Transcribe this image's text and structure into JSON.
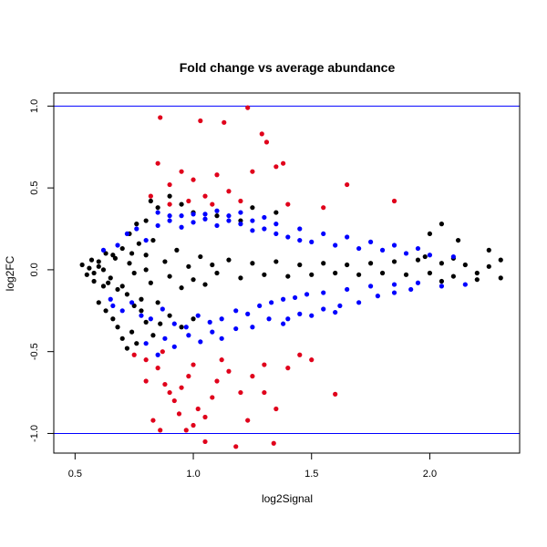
{
  "chart_data": {
    "type": "scatter",
    "title": "Fold change vs average abundance",
    "xlabel": "log2Signal",
    "ylabel": "log2FC",
    "xlim": [
      0.41,
      2.38
    ],
    "ylim": [
      -1.12,
      1.08
    ],
    "x_ticks": [
      0.5,
      1.0,
      1.5,
      2.0
    ],
    "x_tick_labels": [
      "0.5",
      "1.0",
      "1.5",
      "2.0"
    ],
    "y_ticks": [
      -1.0,
      -0.5,
      0.0,
      0.5,
      1.0
    ],
    "y_tick_labels": [
      "-1.0",
      "-0.5",
      "0.0",
      "0.5",
      "1.0"
    ],
    "reference_lines": [
      {
        "axis": "y",
        "value": 1.0,
        "color": "#0000ff"
      },
      {
        "axis": "y",
        "value": -1.0,
        "color": "#0000ff"
      }
    ],
    "colors": {
      "black": "#000000",
      "blue": "#0000ff",
      "red": "#e0001b"
    },
    "series": [
      {
        "color": "#000000",
        "description": "dense band near log2FC = 0",
        "points": [
          [
            0.53,
            0.03
          ],
          [
            0.55,
            -0.03
          ],
          [
            0.57,
            0.06
          ],
          [
            0.58,
            -0.07
          ],
          [
            0.6,
            0.02
          ],
          [
            0.62,
            -0.1
          ],
          [
            0.63,
            0.1
          ],
          [
            0.65,
            -0.05
          ],
          [
            0.67,
            0.07
          ],
          [
            0.68,
            -0.12
          ],
          [
            0.7,
            0.13
          ],
          [
            0.72,
            -0.15
          ],
          [
            0.73,
            0.04
          ],
          [
            0.75,
            -0.02
          ],
          [
            0.77,
            0.16
          ],
          [
            0.78,
            -0.18
          ],
          [
            0.8,
            0.09
          ],
          [
            0.82,
            -0.08
          ],
          [
            0.83,
            0.18
          ],
          [
            0.85,
            -0.2
          ],
          [
            0.88,
            0.05
          ],
          [
            0.9,
            -0.04
          ],
          [
            0.93,
            0.12
          ],
          [
            0.95,
            -0.11
          ],
          [
            0.98,
            0.02
          ],
          [
            1.0,
            -0.06
          ],
          [
            1.03,
            0.08
          ],
          [
            1.05,
            -0.09
          ],
          [
            1.08,
            0.03
          ],
          [
            1.1,
            -0.02
          ],
          [
            1.15,
            0.06
          ],
          [
            1.2,
            -0.05
          ],
          [
            1.25,
            0.04
          ],
          [
            1.3,
            -0.03
          ],
          [
            1.35,
            0.05
          ],
          [
            1.4,
            -0.04
          ],
          [
            1.45,
            0.03
          ],
          [
            1.5,
            -0.03
          ],
          [
            1.55,
            0.04
          ],
          [
            1.6,
            -0.02
          ],
          [
            1.65,
            0.03
          ],
          [
            1.7,
            -0.03
          ],
          [
            1.75,
            0.04
          ],
          [
            1.8,
            -0.02
          ],
          [
            1.85,
            0.05
          ],
          [
            1.9,
            -0.03
          ],
          [
            1.95,
            0.06
          ],
          [
            2.0,
            -0.02
          ],
          [
            2.05,
            0.04
          ],
          [
            2.1,
            -0.04
          ],
          [
            2.15,
            0.03
          ],
          [
            2.2,
            -0.02
          ],
          [
            2.25,
            0.02
          ],
          [
            2.3,
            -0.05
          ],
          [
            2.2,
            -0.06
          ],
          [
            2.1,
            0.07
          ],
          [
            2.05,
            -0.07
          ],
          [
            1.98,
            0.08
          ],
          [
            0.6,
            -0.2
          ],
          [
            0.63,
            -0.25
          ],
          [
            0.66,
            -0.3
          ],
          [
            0.68,
            -0.35
          ],
          [
            0.7,
            -0.42
          ],
          [
            0.72,
            -0.48
          ],
          [
            0.74,
            -0.38
          ],
          [
            0.76,
            -0.45
          ],
          [
            0.8,
            -0.32
          ],
          [
            0.83,
            -0.4
          ],
          [
            0.73,
            0.22
          ],
          [
            0.76,
            0.28
          ],
          [
            0.8,
            0.3
          ],
          [
            0.85,
            0.38
          ],
          [
            0.9,
            0.45
          ],
          [
            0.95,
            0.4
          ],
          [
            0.82,
            0.42
          ],
          [
            1.0,
            0.35
          ],
          [
            1.1,
            0.33
          ],
          [
            1.2,
            0.3
          ],
          [
            1.25,
            0.38
          ],
          [
            1.35,
            0.35
          ],
          [
            2.05,
            0.28
          ],
          [
            2.0,
            0.22
          ],
          [
            2.12,
            0.18
          ],
          [
            2.25,
            0.12
          ],
          [
            2.3,
            0.06
          ],
          [
            0.95,
            -0.35
          ],
          [
            1.0,
            -0.3
          ],
          [
            0.9,
            -0.28
          ],
          [
            0.86,
            -0.33
          ],
          [
            0.78,
            -0.25
          ],
          [
            0.75,
            -0.22
          ],
          [
            0.58,
            -0.02
          ],
          [
            0.56,
            0.01
          ],
          [
            0.6,
            0.05
          ],
          [
            0.62,
            0.0
          ],
          [
            0.64,
            -0.08
          ],
          [
            0.66,
            0.09
          ],
          [
            0.7,
            -0.1
          ],
          [
            0.74,
            0.1
          ],
          [
            0.8,
            0.0
          ]
        ]
      },
      {
        "color": "#0000ff",
        "description": "|log2FC| between ~0.1 and ~0.35",
        "points": [
          [
            0.72,
            0.22
          ],
          [
            0.74,
            -0.2
          ],
          [
            0.76,
            0.25
          ],
          [
            0.78,
            -0.28
          ],
          [
            0.8,
            0.18
          ],
          [
            0.82,
            -0.3
          ],
          [
            0.85,
            0.27
          ],
          [
            0.87,
            -0.24
          ],
          [
            0.9,
            0.3
          ],
          [
            0.92,
            -0.33
          ],
          [
            0.95,
            0.26
          ],
          [
            0.97,
            -0.35
          ],
          [
            1.0,
            0.29
          ],
          [
            1.02,
            -0.28
          ],
          [
            1.05,
            0.31
          ],
          [
            1.07,
            -0.32
          ],
          [
            1.1,
            0.27
          ],
          [
            1.12,
            -0.3
          ],
          [
            1.15,
            0.3
          ],
          [
            1.18,
            -0.25
          ],
          [
            1.2,
            0.28
          ],
          [
            1.23,
            -0.27
          ],
          [
            1.25,
            0.24
          ],
          [
            1.28,
            -0.22
          ],
          [
            1.3,
            0.25
          ],
          [
            1.33,
            -0.2
          ],
          [
            1.35,
            0.22
          ],
          [
            1.38,
            -0.18
          ],
          [
            1.4,
            0.2
          ],
          [
            1.43,
            -0.17
          ],
          [
            1.45,
            0.18
          ],
          [
            1.48,
            -0.15
          ],
          [
            1.5,
            0.17
          ],
          [
            1.55,
            -0.14
          ],
          [
            1.6,
            0.15
          ],
          [
            1.65,
            -0.12
          ],
          [
            1.7,
            0.13
          ],
          [
            1.75,
            -0.1
          ],
          [
            1.8,
            0.12
          ],
          [
            1.85,
            -0.09
          ],
          [
            1.9,
            0.1
          ],
          [
            1.95,
            -0.08
          ],
          [
            2.0,
            0.09
          ],
          [
            2.05,
            -0.1
          ],
          [
            2.1,
            0.08
          ],
          [
            2.15,
            -0.09
          ],
          [
            0.8,
            -0.45
          ],
          [
            0.85,
            -0.52
          ],
          [
            0.88,
            -0.42
          ],
          [
            0.92,
            -0.47
          ],
          [
            0.98,
            -0.4
          ],
          [
            1.03,
            -0.44
          ],
          [
            1.08,
            -0.38
          ],
          [
            1.12,
            -0.42
          ],
          [
            1.18,
            -0.36
          ],
          [
            1.25,
            -0.35
          ],
          [
            1.32,
            -0.3
          ],
          [
            1.38,
            -0.33
          ],
          [
            1.45,
            -0.27
          ],
          [
            1.55,
            -0.24
          ],
          [
            1.62,
            -0.22
          ],
          [
            1.7,
            -0.2
          ],
          [
            1.78,
            -0.16
          ],
          [
            1.85,
            -0.14
          ],
          [
            1.92,
            -0.12
          ],
          [
            0.85,
            0.35
          ],
          [
            0.95,
            0.33
          ],
          [
            1.05,
            0.34
          ],
          [
            1.15,
            0.33
          ],
          [
            1.25,
            0.3
          ],
          [
            1.35,
            0.28
          ],
          [
            1.45,
            0.25
          ],
          [
            1.55,
            0.22
          ],
          [
            1.65,
            0.2
          ],
          [
            1.75,
            0.17
          ],
          [
            1.85,
            0.15
          ],
          [
            1.95,
            0.13
          ],
          [
            0.65,
            -0.18
          ],
          [
            0.68,
            0.15
          ],
          [
            0.7,
            -0.25
          ],
          [
            0.62,
            0.12
          ],
          [
            0.66,
            -0.22
          ],
          [
            1.4,
            -0.3
          ],
          [
            1.5,
            -0.28
          ],
          [
            1.6,
            -0.26
          ],
          [
            1.3,
            0.32
          ],
          [
            1.2,
            0.35
          ],
          [
            1.1,
            0.36
          ],
          [
            1.0,
            0.34
          ],
          [
            0.9,
            0.33
          ]
        ]
      },
      {
        "color": "#e0001b",
        "description": "|log2FC| above ~0.35",
        "points": [
          [
            0.86,
            0.93
          ],
          [
            1.03,
            0.91
          ],
          [
            1.13,
            0.9
          ],
          [
            1.23,
            0.99
          ],
          [
            1.29,
            0.83
          ],
          [
            1.31,
            0.78
          ],
          [
            0.85,
            0.65
          ],
          [
            0.9,
            0.52
          ],
          [
            0.95,
            0.6
          ],
          [
            1.0,
            0.55
          ],
          [
            1.05,
            0.45
          ],
          [
            1.1,
            0.58
          ],
          [
            1.15,
            0.48
          ],
          [
            1.2,
            0.42
          ],
          [
            1.25,
            0.6
          ],
          [
            1.35,
            0.63
          ],
          [
            1.38,
            0.65
          ],
          [
            1.65,
            0.52
          ],
          [
            1.85,
            0.42
          ],
          [
            0.82,
            0.45
          ],
          [
            0.9,
            0.4
          ],
          [
            0.98,
            0.42
          ],
          [
            1.08,
            0.4
          ],
          [
            1.4,
            0.4
          ],
          [
            1.55,
            0.38
          ],
          [
            0.75,
            -0.52
          ],
          [
            0.8,
            -0.55
          ],
          [
            0.85,
            -0.6
          ],
          [
            0.88,
            -0.7
          ],
          [
            0.9,
            -0.75
          ],
          [
            0.92,
            -0.8
          ],
          [
            0.95,
            -0.72
          ],
          [
            0.98,
            -0.65
          ],
          [
            1.0,
            -0.58
          ],
          [
            1.02,
            -0.85
          ],
          [
            1.05,
            -0.9
          ],
          [
            1.08,
            -0.78
          ],
          [
            1.1,
            -0.68
          ],
          [
            1.12,
            -0.55
          ],
          [
            1.15,
            -0.62
          ],
          [
            1.2,
            -0.75
          ],
          [
            1.23,
            -0.92
          ],
          [
            1.18,
            -1.08
          ],
          [
            1.34,
            -1.06
          ],
          [
            1.05,
            -1.05
          ],
          [
            0.86,
            -0.98
          ],
          [
            0.83,
            -0.92
          ],
          [
            0.97,
            -0.98
          ],
          [
            1.3,
            -0.75
          ],
          [
            1.4,
            -0.6
          ],
          [
            1.5,
            -0.55
          ],
          [
            1.6,
            -0.76
          ],
          [
            1.3,
            -0.58
          ],
          [
            1.45,
            -0.52
          ],
          [
            0.8,
            -0.68
          ],
          [
            0.87,
            -0.5
          ],
          [
            1.25,
            -0.65
          ],
          [
            1.35,
            -0.85
          ],
          [
            0.94,
            -0.88
          ],
          [
            1.0,
            -0.95
          ]
        ]
      }
    ]
  }
}
